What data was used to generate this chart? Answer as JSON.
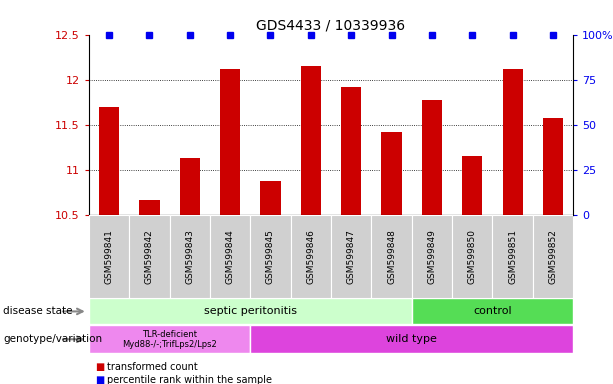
{
  "title": "GDS4433 / 10339936",
  "samples": [
    "GSM599841",
    "GSM599842",
    "GSM599843",
    "GSM599844",
    "GSM599845",
    "GSM599846",
    "GSM599847",
    "GSM599848",
    "GSM599849",
    "GSM599850",
    "GSM599851",
    "GSM599852"
  ],
  "bar_values": [
    11.7,
    10.67,
    11.13,
    12.12,
    10.88,
    12.15,
    11.92,
    11.42,
    11.78,
    11.15,
    12.12,
    11.57
  ],
  "bar_color": "#cc0000",
  "dot_color": "#0000ee",
  "ylim_left": [
    10.5,
    12.5
  ],
  "ylim_right": [
    0,
    100
  ],
  "yticks_left": [
    10.5,
    11.0,
    11.5,
    12.0,
    12.5
  ],
  "yticks_right": [
    0,
    25,
    50,
    75,
    100
  ],
  "ytick_labels_left": [
    "10.5",
    "11",
    "11.5",
    "12",
    "12.5"
  ],
  "ytick_labels_right": [
    "0",
    "25",
    "50",
    "75",
    "100%"
  ],
  "disease_state_label": "disease state",
  "genotype_label": "genotype/variation",
  "disease_state_groups": [
    {
      "label": "septic peritonitis",
      "n_samples": 8,
      "color": "#ccffcc"
    },
    {
      "label": "control",
      "n_samples": 4,
      "color": "#55dd55"
    }
  ],
  "genotype_groups": [
    {
      "label": "TLR-deficient\nMyd88-/-;TrifLps2/Lps2",
      "n_samples": 4,
      "color": "#ee88ee"
    },
    {
      "label": "wild type",
      "n_samples": 8,
      "color": "#dd44dd"
    }
  ],
  "legend_bar_label": "transformed count",
  "legend_dot_label": "percentile rank within the sample",
  "title_fontsize": 10,
  "tick_fontsize": 8,
  "sample_fontsize": 6.5
}
